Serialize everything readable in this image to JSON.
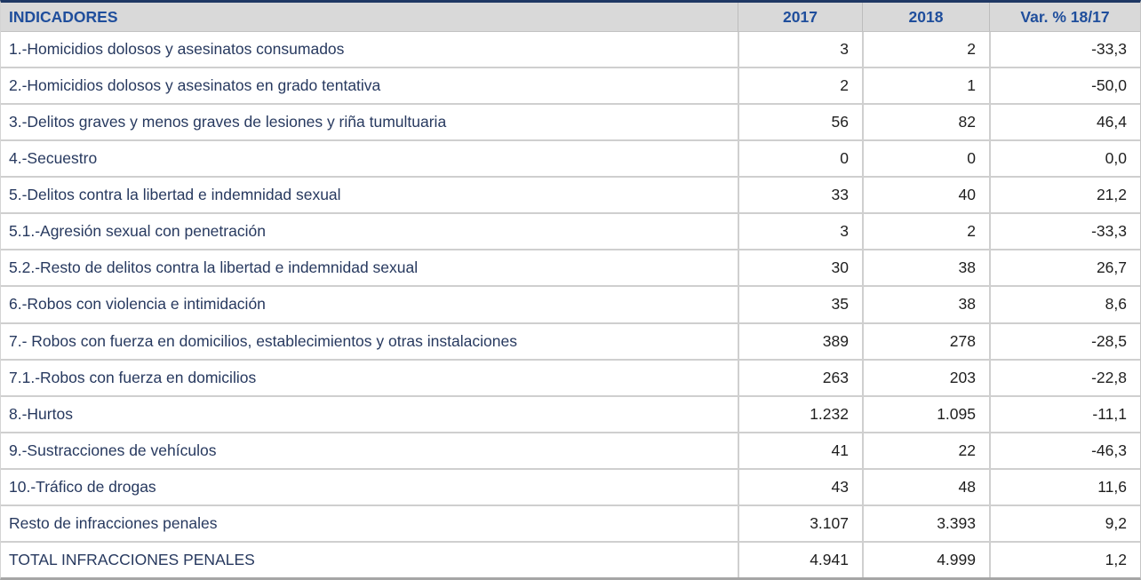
{
  "table": {
    "columns": [
      "INDICADORES",
      "2017",
      "2018",
      "Var. % 18/17"
    ],
    "rows": [
      {
        "label": "1.-Homicidios dolosos y asesinatos consumados",
        "values": [
          "3",
          "2",
          "-33,3"
        ]
      },
      {
        "label": "2.-Homicidios dolosos y asesinatos en grado tentativa",
        "values": [
          "2",
          "1",
          "-50,0"
        ]
      },
      {
        "label": "3.-Delitos graves y menos graves de lesiones y riña tumultuaria",
        "values": [
          "56",
          "82",
          "46,4"
        ]
      },
      {
        "label": "4.-Secuestro",
        "values": [
          "0",
          "0",
          "0,0"
        ]
      },
      {
        "label": "5.-Delitos contra la libertad e indemnidad sexual",
        "values": [
          "33",
          "40",
          "21,2"
        ]
      },
      {
        "label": "5.1.-Agresión sexual con penetración",
        "values": [
          "3",
          "2",
          "-33,3"
        ]
      },
      {
        "label": "5.2.-Resto de delitos contra la libertad e indemnidad sexual",
        "values": [
          "30",
          "38",
          "26,7"
        ]
      },
      {
        "label": "6.-Robos con violencia e intimidación",
        "values": [
          "35",
          "38",
          "8,6"
        ]
      },
      {
        "label": "7.- Robos con fuerza en domicilios, establecimientos y otras instalaciones",
        "values": [
          "389",
          "278",
          "-28,5"
        ]
      },
      {
        "label": "7.1.-Robos con fuerza en domicilios",
        "values": [
          "263",
          "203",
          "-22,8"
        ]
      },
      {
        "label": "8.-Hurtos",
        "values": [
          "1.232",
          "1.095",
          "-11,1"
        ]
      },
      {
        "label": "9.-Sustracciones de vehículos",
        "values": [
          "41",
          "22",
          "-46,3"
        ]
      },
      {
        "label": "10.-Tráfico de drogas",
        "values": [
          "43",
          "48",
          "11,6"
        ]
      },
      {
        "label": "Resto de infracciones penales",
        "values": [
          "3.107",
          "3.393",
          "9,2"
        ]
      },
      {
        "label": "TOTAL INFRACCIONES PENALES",
        "values": [
          "4.941",
          "4.999",
          "1,2"
        ]
      }
    ],
    "colors": {
      "header_text": "#1F4E9C",
      "header_background": "#D9D9D9",
      "row_label_text": "#27395F",
      "value_text": "#1F1F1F",
      "top_border": "#1F3864",
      "bottom_border": "#A6A6A6",
      "grid_line": "#CFCFCF"
    }
  }
}
